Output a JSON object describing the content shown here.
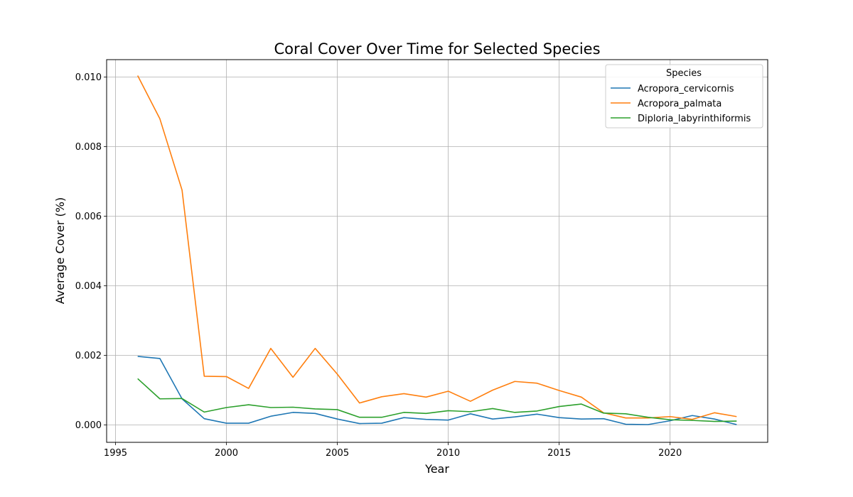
{
  "chart_data": {
    "type": "line",
    "title": "Coral Cover Over Time for Selected Species",
    "xlabel": "Year",
    "ylabel": "Average Cover (%)",
    "xlim": [
      1994.6,
      2024.4
    ],
    "ylim": [
      -0.0005,
      0.0105
    ],
    "xticks": [
      1995,
      2000,
      2005,
      2010,
      2015,
      2020
    ],
    "xtick_labels": [
      "1995",
      "2000",
      "2005",
      "2010",
      "2015",
      "2020"
    ],
    "yticks": [
      0.0,
      0.002,
      0.004,
      0.006,
      0.008,
      0.01
    ],
    "ytick_labels": [
      "0.000",
      "0.002",
      "0.004",
      "0.006",
      "0.008",
      "0.010"
    ],
    "grid": true,
    "legend": {
      "title": "Species",
      "placement": "top-right"
    },
    "x": [
      1996,
      1997,
      1998,
      1999,
      2000,
      2001,
      2002,
      2003,
      2004,
      2005,
      2006,
      2007,
      2008,
      2009,
      2010,
      2011,
      2012,
      2013,
      2014,
      2015,
      2016,
      2017,
      2018,
      2019,
      2020,
      2021,
      2022,
      2023
    ],
    "series": [
      {
        "name": "Acropora_cervicornis",
        "color": "#1f77b4",
        "values": [
          0.00197,
          0.00191,
          0.00075,
          0.00018,
          5e-05,
          5e-05,
          0.00025,
          0.00036,
          0.00033,
          0.00017,
          4e-05,
          5e-05,
          0.00021,
          0.00016,
          0.00014,
          0.00032,
          0.00017,
          0.00023,
          0.00031,
          0.00021,
          0.00017,
          0.00018,
          2e-05,
          1e-05,
          0.00012,
          0.00027,
          0.00017,
          1e-05
        ]
      },
      {
        "name": "Acropora_palmata",
        "color": "#ff7f0e",
        "values": [
          0.01004,
          0.0088,
          0.00675,
          0.0014,
          0.00139,
          0.00105,
          0.0022,
          0.00137,
          0.0022,
          0.00146,
          0.00063,
          0.00081,
          0.0009,
          0.0008,
          0.00097,
          0.00068,
          0.001,
          0.00125,
          0.0012,
          0.00099,
          0.0008,
          0.00035,
          0.0002,
          0.0002,
          0.00024,
          0.00016,
          0.00035,
          0.00024
        ]
      },
      {
        "name": "Diploria_labyrinthiformis",
        "color": "#2ca02c",
        "values": [
          0.00133,
          0.00075,
          0.00076,
          0.00037,
          0.0005,
          0.00058,
          0.0005,
          0.00051,
          0.00046,
          0.00044,
          0.00022,
          0.00022,
          0.00036,
          0.00033,
          0.00041,
          0.00038,
          0.00047,
          0.00036,
          0.0004,
          0.00053,
          0.0006,
          0.00034,
          0.00032,
          0.00022,
          0.00015,
          0.00013,
          0.0001,
          0.00011
        ]
      }
    ]
  }
}
